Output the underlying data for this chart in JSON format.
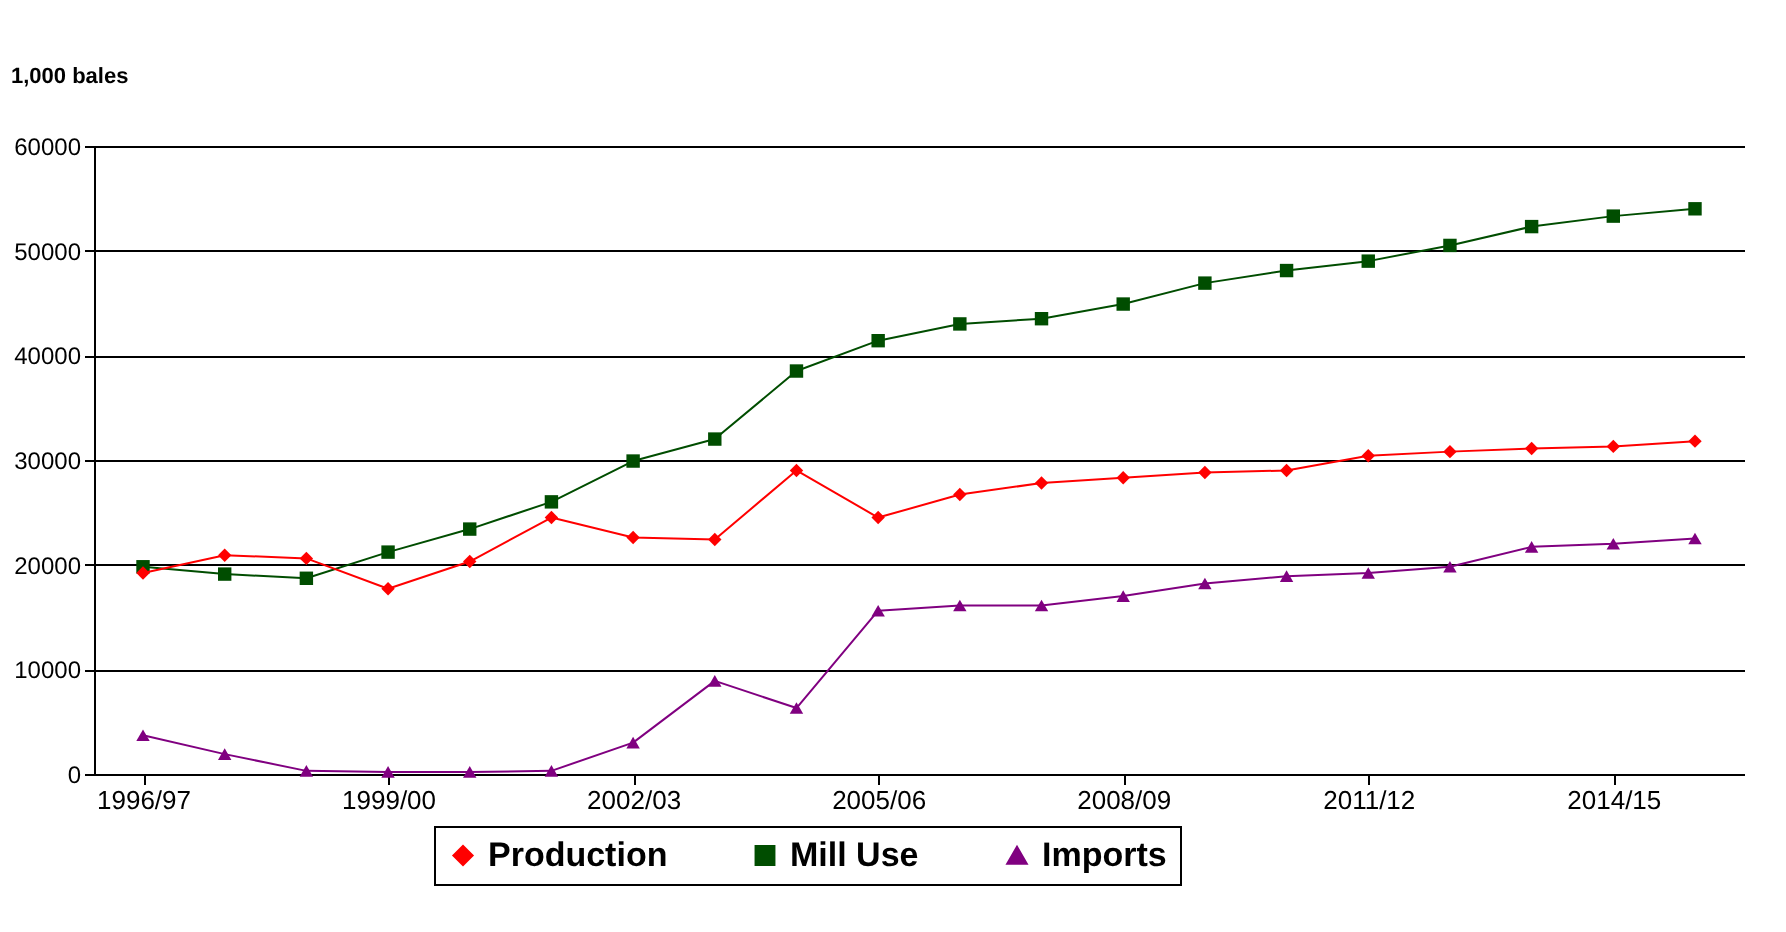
{
  "chart_data": {
    "type": "line",
    "ylabel": "1,000 bales",
    "categories": [
      "1996/97",
      null,
      null,
      "1999/00",
      null,
      null,
      "2002/03",
      null,
      null,
      "2005/06",
      null,
      null,
      "2008/09",
      null,
      null,
      "2011/12",
      null,
      null,
      "2014/15",
      null
    ],
    "series": [
      {
        "name": "Production",
        "color": "#ff0000",
        "marker": "diamond",
        "values": [
          19200,
          20900,
          20600,
          17700,
          20300,
          24500,
          22600,
          22400,
          29000,
          24500,
          26700,
          27800,
          28300,
          28800,
          29000,
          30400,
          30800,
          31100,
          31300,
          31800
        ]
      },
      {
        "name": "Mill Use",
        "color": "#004d00",
        "marker": "square",
        "values": [
          19800,
          19100,
          18700,
          21200,
          23400,
          26000,
          29900,
          32000,
          38500,
          41400,
          43000,
          43500,
          44900,
          46900,
          48100,
          49000,
          50500,
          52300,
          53300,
          54000
        ]
      },
      {
        "name": "Imports",
        "color": "#800080",
        "marker": "triangle",
        "values": [
          3700,
          1900,
          300,
          200,
          200,
          300,
          3000,
          8900,
          6300,
          15600,
          16100,
          16100,
          17000,
          18200,
          18900,
          19200,
          19800,
          21700,
          22000,
          22500
        ]
      }
    ],
    "ylim": [
      0,
      60000
    ],
    "yticks": [
      0,
      10000,
      20000,
      30000,
      40000,
      50000,
      60000
    ],
    "grid": "y",
    "legend": "bottom",
    "line_style": "solid"
  }
}
